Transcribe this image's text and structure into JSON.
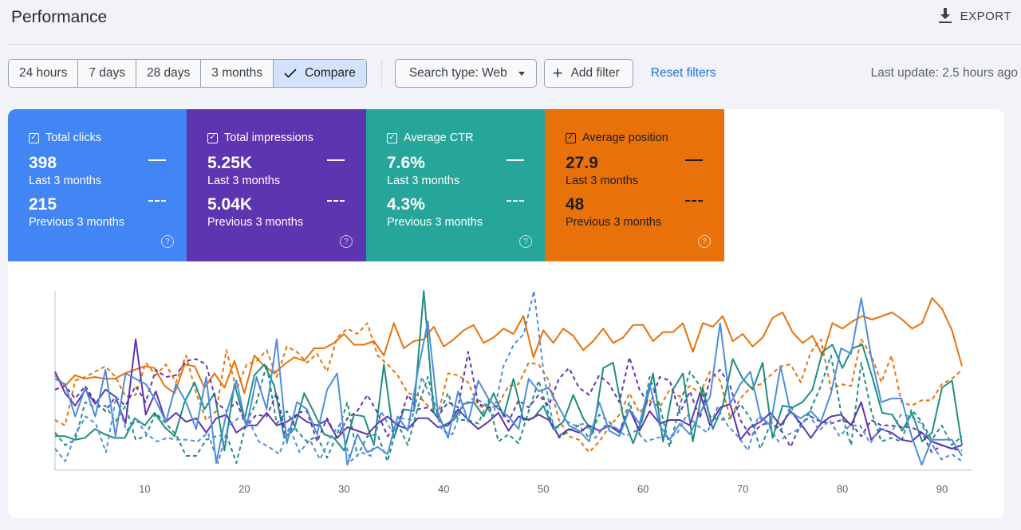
{
  "header": {
    "title": "Performance",
    "export_label": "EXPORT"
  },
  "toolbar": {
    "ranges": [
      {
        "label": "24 hours",
        "active": false
      },
      {
        "label": "7 days",
        "active": false
      },
      {
        "label": "28 days",
        "active": false
      },
      {
        "label": "3 months",
        "active": false
      },
      {
        "label": "Compare",
        "active": true
      }
    ],
    "search_type": "Search type: Web",
    "add_filter": "Add filter",
    "reset_filters": "Reset filters",
    "last_update": "Last update: 2.5 hours ago"
  },
  "metrics": [
    {
      "label": "Total clicks",
      "value_current": "398",
      "period_current": "Last 3 months",
      "value_previous": "215",
      "period_previous": "Previous 3 months",
      "color": "#4285f4"
    },
    {
      "label": "Total impressions",
      "value_current": "5.25K",
      "period_current": "Last 3 months",
      "value_previous": "5.04K",
      "period_previous": "Previous 3 months",
      "color": "#5e35b1"
    },
    {
      "label": "Average CTR",
      "value_current": "7.6%",
      "period_current": "Last 3 months",
      "value_previous": "4.3%",
      "period_previous": "Previous 3 months",
      "color": "#26a69a"
    },
    {
      "label": "Average position",
      "value_current": "27.9",
      "period_current": "Last 3 months",
      "value_previous": "48",
      "period_previous": "Previous 3 months",
      "color": "#e8710a"
    }
  ],
  "chart_data": {
    "type": "line",
    "x_ticks": [
      10,
      20,
      30,
      40,
      50,
      60,
      70,
      80,
      90
    ],
    "xlim": [
      1,
      92
    ],
    "grid": false,
    "series": [
      {
        "metric": "Average position",
        "period": "current",
        "color": "#e8710a",
        "dashed": false,
        "values": [
          0.53,
          0.47,
          0.53,
          0.51,
          0.52,
          0.51,
          0.51,
          0.54,
          0.56,
          0.58,
          0.57,
          0.47,
          0.43,
          0.59,
          0.58,
          0.46,
          0.54,
          0.46,
          0.61,
          0.43,
          0.64,
          0.58,
          0.54,
          0.59,
          0.63,
          0.61,
          0.68,
          0.68,
          0.71,
          0.76,
          0.7,
          0.7,
          0.72,
          0.64,
          0.82,
          0.68,
          0.72,
          0.73,
          0.8,
          0.69,
          0.73,
          0.78,
          0.81,
          0.71,
          0.74,
          0.79,
          0.76,
          0.86,
          0.63,
          0.78,
          0.71,
          0.79,
          0.75,
          0.67,
          0.72,
          0.79,
          0.71,
          0.74,
          0.81,
          0.81,
          0.72,
          0.77,
          0.77,
          0.82,
          0.66,
          0.82,
          0.8,
          0.86,
          0.72,
          0.76,
          0.69,
          0.74,
          0.85,
          0.88,
          0.77,
          0.71,
          0.75,
          0.64,
          0.82,
          0.79,
          0.83,
          0.86,
          0.84,
          0.86,
          0.88,
          0.84,
          0.79,
          0.82,
          0.96,
          0.9,
          0.78,
          0.58
        ]
      },
      {
        "metric": "Average position",
        "period": "previous",
        "color": "#e8710a",
        "dashed": true,
        "values": [
          0.28,
          0.25,
          0.5,
          0.52,
          0.55,
          0.58,
          0.52,
          0.41,
          0.42,
          0.6,
          0.53,
          0.59,
          0.49,
          0.64,
          0.43,
          0.28,
          0.33,
          0.67,
          0.45,
          0.59,
          0.61,
          0.67,
          0.52,
          0.69,
          0.66,
          0.6,
          0.65,
          0.55,
          0.74,
          0.79,
          0.76,
          0.82,
          0.64,
          0.59,
          0.53,
          0.43,
          0.42,
          0.36,
          0.31,
          0.54,
          0.53,
          0.49,
          0.36,
          0.34,
          0.37,
          0.47,
          0.48,
          0.6,
          0.59,
          0.5,
          0.28,
          0.19,
          0.17,
          0.1,
          0.16,
          0.24,
          0.31,
          0.43,
          0.32,
          0.39,
          0.35,
          0.45,
          0.41,
          0.47,
          0.43,
          0.55,
          0.5,
          0.29,
          0.4,
          0.46,
          0.48,
          0.53,
          0.58,
          0.59,
          0.49,
          0.66,
          0.73,
          0.45,
          0.48,
          0.47,
          0.73,
          0.64,
          0.49,
          0.64,
          0.38,
          0.36,
          0.39,
          0.39,
          0.48,
          0.51,
          0.56
        ]
      },
      {
        "metric": "Average CTR",
        "period": "current",
        "color": "#1e8e7e",
        "dashed": false,
        "values": [
          0.19,
          0.19,
          0.17,
          0.18,
          0.23,
          0.2,
          0.18,
          0.18,
          0.29,
          0.25,
          0.32,
          0.24,
          0.19,
          0.38,
          0.49,
          0.34,
          0.43,
          0.11,
          0.48,
          0.28,
          0.53,
          0.59,
          0.47,
          0.18,
          0.23,
          0.43,
          0.32,
          0.2,
          0.18,
          0.11,
          0.31,
          0.3,
          0.14,
          0.59,
          0.18,
          0.34,
          0.33,
          1.0,
          0.32,
          0.25,
          0.28,
          0.37,
          0.38,
          0.3,
          0.43,
          0.3,
          0.51,
          0.28,
          0.29,
          0.36,
          0.23,
          0.27,
          0.42,
          0.29,
          0.21,
          0.57,
          0.6,
          0.3,
          0.15,
          0.3,
          0.54,
          0.16,
          0.45,
          0.54,
          0.16,
          0.46,
          0.23,
          0.36,
          0.62,
          0.51,
          0.45,
          0.6,
          0.18,
          0.36,
          0.35,
          0.38,
          0.45,
          0.66,
          0.7,
          0.57,
          0.68,
          0.7,
          0.52,
          0.32,
          0.31,
          0.22,
          0.32,
          0.16,
          0.21,
          0.46,
          0.5,
          0.14
        ]
      },
      {
        "metric": "Average CTR",
        "period": "previous",
        "color": "#1e8e7e",
        "dashed": true,
        "values": [
          0.21,
          0.14,
          0.17,
          0.38,
          0.35,
          0.36,
          0.27,
          0.36,
          0.17,
          0.19,
          0.32,
          0.26,
          0.2,
          0.08,
          0.08,
          0.17,
          0.19,
          0.2,
          0.04,
          0.27,
          0.38,
          0.59,
          0.26,
          0.33,
          0.22,
          0.16,
          0.19,
          0.07,
          0.2,
          0.38,
          0.08,
          0.19,
          0.2,
          0.05,
          0.26,
          0.14,
          0.35,
          0.52,
          0.3,
          0.43,
          0.28,
          0.28,
          0.26,
          0.39,
          0.16,
          0.2,
          0.15,
          0.33,
          0.5,
          0.31,
          0.18,
          0.22,
          0.25,
          0.18,
          0.31,
          0.27,
          0.21,
          0.38,
          0.2,
          0.52,
          0.36,
          0.13,
          0.36,
          0.55,
          0.47,
          0.3,
          0.28,
          0.29,
          0.37,
          0.29,
          0.12,
          0.26,
          0.22,
          0.36,
          0.24,
          0.34,
          0.47,
          0.64,
          0.32,
          0.14,
          0.6,
          0.33,
          0.16,
          0.18,
          0.16,
          0.34,
          0.27,
          0.17,
          0.25,
          0.14,
          0.19
        ]
      },
      {
        "metric": "Total impressions",
        "period": "current",
        "color": "#5e35b1",
        "dashed": false,
        "values": [
          0.55,
          0.43,
          0.36,
          0.45,
          0.37,
          0.45,
          0.41,
          0.26,
          0.73,
          0.31,
          0.44,
          0.27,
          0.32,
          0.27,
          0.29,
          0.21,
          0.29,
          0.31,
          0.21,
          0.25,
          0.25,
          0.32,
          0.25,
          0.27,
          0.31,
          0.27,
          0.25,
          0.28,
          0.18,
          0.24,
          0.22,
          0.2,
          0.26,
          0.3,
          0.25,
          0.23,
          0.29,
          0.29,
          0.24,
          0.25,
          0.34,
          0.28,
          0.23,
          0.27,
          0.32,
          0.22,
          0.3,
          0.28,
          0.31,
          0.28,
          0.19,
          0.23,
          0.21,
          0.25,
          0.22,
          0.25,
          0.21,
          0.34,
          0.22,
          0.33,
          0.26,
          0.28,
          0.28,
          0.25,
          0.43,
          0.25,
          0.35,
          0.37,
          0.17,
          0.24,
          0.27,
          0.32,
          0.25,
          0.33,
          0.26,
          0.18,
          0.26,
          0.3,
          0.31,
          0.25,
          0.38,
          0.17,
          0.23,
          0.21,
          0.17,
          0.16,
          0.21,
          0.16,
          0.14,
          0.12,
          0.14
        ]
      },
      {
        "metric": "Total impressions",
        "period": "previous",
        "color": "#5e35b1",
        "dashed": true,
        "values": [
          0.45,
          0.47,
          0.4,
          0.47,
          0.38,
          0.33,
          0.41,
          0.36,
          0.47,
          0.38,
          0.56,
          0.52,
          0.53,
          0.61,
          0.62,
          0.59,
          0.38,
          0.33,
          0.38,
          0.25,
          0.31,
          0.3,
          0.43,
          0.16,
          0.32,
          0.33,
          0.16,
          0.29,
          0.18,
          0.29,
          0.33,
          0.42,
          0.32,
          0.19,
          0.25,
          0.42,
          0.34,
          0.35,
          0.3,
          0.38,
          0.35,
          0.66,
          0.37,
          0.35,
          0.36,
          0.27,
          0.39,
          0.35,
          0.42,
          0.36,
          0.51,
          0.57,
          0.46,
          0.42,
          0.53,
          0.48,
          0.38,
          0.63,
          0.45,
          0.36,
          0.52,
          0.5,
          0.32,
          0.44,
          0.29,
          0.51,
          0.56,
          0.47,
          0.28,
          0.19,
          0.25,
          0.27,
          0.23,
          0.13,
          0.26,
          0.3,
          0.27,
          0.26,
          0.28,
          0.26,
          0.19,
          0.28,
          0.25,
          0.25,
          0.24,
          0.24,
          0.21,
          0.1,
          0.14,
          0.12,
          0.11
        ]
      },
      {
        "metric": "Total clicks",
        "period": "current",
        "color": "#4e8ddd",
        "dashed": false,
        "values": [
          0.51,
          0.48,
          0.3,
          0.46,
          0.3,
          0.56,
          0.19,
          0.54,
          0.51,
          0.48,
          0.39,
          0.27,
          0.48,
          0.38,
          0.23,
          0.52,
          0.04,
          0.32,
          0.5,
          0.24,
          0.52,
          0.34,
          0.73,
          0.15,
          0.38,
          0.34,
          0.2,
          0.45,
          0.54,
          0.03,
          0.2,
          0.1,
          0.13,
          0.09,
          0.3,
          0.22,
          0.55,
          0.83,
          0.32,
          0.18,
          0.44,
          0.27,
          0.5,
          0.4,
          0.34,
          0.3,
          0.23,
          0.51,
          0.44,
          0.46,
          0.35,
          0.25,
          0.22,
          0.16,
          0.38,
          0.22,
          0.19,
          0.34,
          0.26,
          0.48,
          0.25,
          0.17,
          0.26,
          0.2,
          0.32,
          0.41,
          0.82,
          0.37,
          0.48,
          0.55,
          0.3,
          0.25,
          0.58,
          0.32,
          0.29,
          0.33,
          0.27,
          0.43,
          0.68,
          0.65,
          0.96,
          0.63,
          0.38,
          0.4,
          0.4,
          0.19,
          0.03,
          0.17,
          0.17,
          0.17,
          0.08
        ]
      },
      {
        "metric": "Total clicks",
        "period": "previous",
        "color": "#4e8ddd",
        "dashed": true,
        "values": [
          0.12,
          0.05,
          0.2,
          0.3,
          0.26,
          0.1,
          0.41,
          0.22,
          0.28,
          0.2,
          0.16,
          0.18,
          0.17,
          0.17,
          0.16,
          0.21,
          0.04,
          0.25,
          0.29,
          0.28,
          0.16,
          0.13,
          0.09,
          0.24,
          0.1,
          0.17,
          0.06,
          0.18,
          0.26,
          0.05,
          0.1,
          0.08,
          0.33,
          0.22,
          0.29,
          0.28,
          0.52,
          0.39,
          0.22,
          0.2,
          0.36,
          0.4,
          0.38,
          0.3,
          0.58,
          0.7,
          0.76,
          1.0,
          0.52,
          0.22,
          0.28,
          0.25,
          0.26,
          0.18,
          0.25,
          0.24,
          0.19,
          0.22,
          0.16,
          0.18,
          0.19,
          0.2,
          0.31,
          0.25,
          0.21,
          0.35,
          0.25,
          0.19,
          0.11,
          0.3,
          0.25,
          0.16,
          0.2,
          0.23,
          0.31,
          0.22,
          0.28,
          0.19,
          0.25,
          0.25,
          0.15,
          0.24,
          0.2,
          0.31,
          0.3,
          0.26,
          0.15,
          0.06,
          0.09,
          0.05
        ]
      }
    ]
  }
}
